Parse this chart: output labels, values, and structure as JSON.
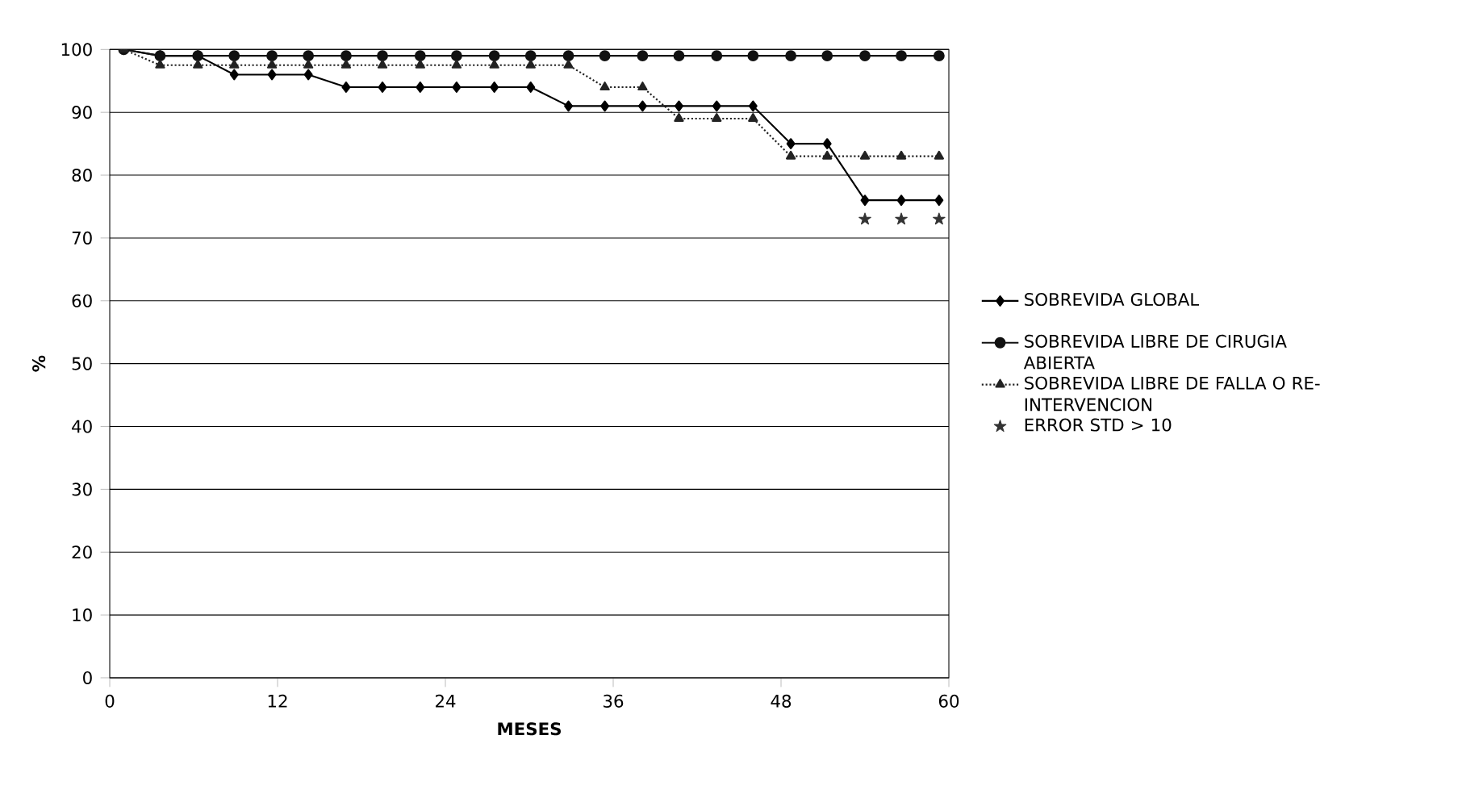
{
  "chart_data": {
    "type": "line",
    "xlabel": "MESES",
    "ylabel": "%",
    "xlim": [
      0,
      60
    ],
    "xticks": [
      0,
      12,
      24,
      36,
      48,
      60
    ],
    "ylim": [
      0,
      100
    ],
    "yticks": [
      0,
      10,
      20,
      30,
      40,
      50,
      60,
      70,
      80,
      90,
      100
    ],
    "grid": "y",
    "legend": "right",
    "series": [
      {
        "name": "SOBREVIDA GLOBAL",
        "color": "#000000",
        "marker": "diamond",
        "line_style": "solid",
        "x": [
          1,
          3.6,
          6.3,
          8.9,
          11.6,
          14.2,
          16.9,
          19.5,
          22.2,
          24.8,
          27.5,
          30.1,
          32.8,
          35.4,
          38.1,
          40.7,
          43.4,
          46,
          48.7,
          51.3,
          54,
          56.6,
          59.3
        ],
        "values": [
          100,
          99,
          99,
          96,
          96,
          96,
          94,
          94,
          94,
          94,
          94,
          94,
          91,
          91,
          91,
          91,
          91,
          91,
          85,
          85,
          76,
          76,
          76
        ]
      },
      {
        "name": "SOBREVIDA LIBRE DE CIRUGIA ABIERTA",
        "color": "#111111",
        "marker": "circle",
        "line_style": "solid",
        "x": [
          1,
          3.6,
          6.3,
          8.9,
          11.6,
          14.2,
          16.9,
          19.5,
          22.2,
          24.8,
          27.5,
          30.1,
          32.8,
          35.4,
          38.1,
          40.7,
          43.4,
          46,
          48.7,
          51.3,
          54,
          56.6,
          59.3
        ],
        "values": [
          100,
          99,
          99,
          99,
          99,
          99,
          99,
          99,
          99,
          99,
          99,
          99,
          99,
          99,
          99,
          99,
          99,
          99,
          99,
          99,
          99,
          99,
          99
        ]
      },
      {
        "name": "SOBREVIDA LIBRE DE FALLA O RE- INTERVENCION",
        "color": "#222222",
        "marker": "triangle",
        "line_style": "dotted",
        "x": [
          1,
          3.6,
          6.3,
          8.9,
          11.6,
          14.2,
          16.9,
          19.5,
          22.2,
          24.8,
          27.5,
          30.1,
          32.8,
          35.4,
          38.1,
          40.7,
          43.4,
          46,
          48.7,
          51.3,
          54,
          56.6,
          59.3
        ],
        "values": [
          100,
          97.5,
          97.5,
          97.5,
          97.5,
          97.5,
          97.5,
          97.5,
          97.5,
          97.5,
          97.5,
          97.5,
          97.5,
          94,
          94,
          89,
          89,
          89,
          83,
          83,
          83,
          83,
          83
        ]
      },
      {
        "name": "ERROR STD  > 10",
        "type": "scatter",
        "color": "#333333",
        "marker": "star",
        "x": [
          54,
          56.6,
          59.3
        ],
        "values": [
          73,
          73,
          73
        ]
      }
    ]
  }
}
